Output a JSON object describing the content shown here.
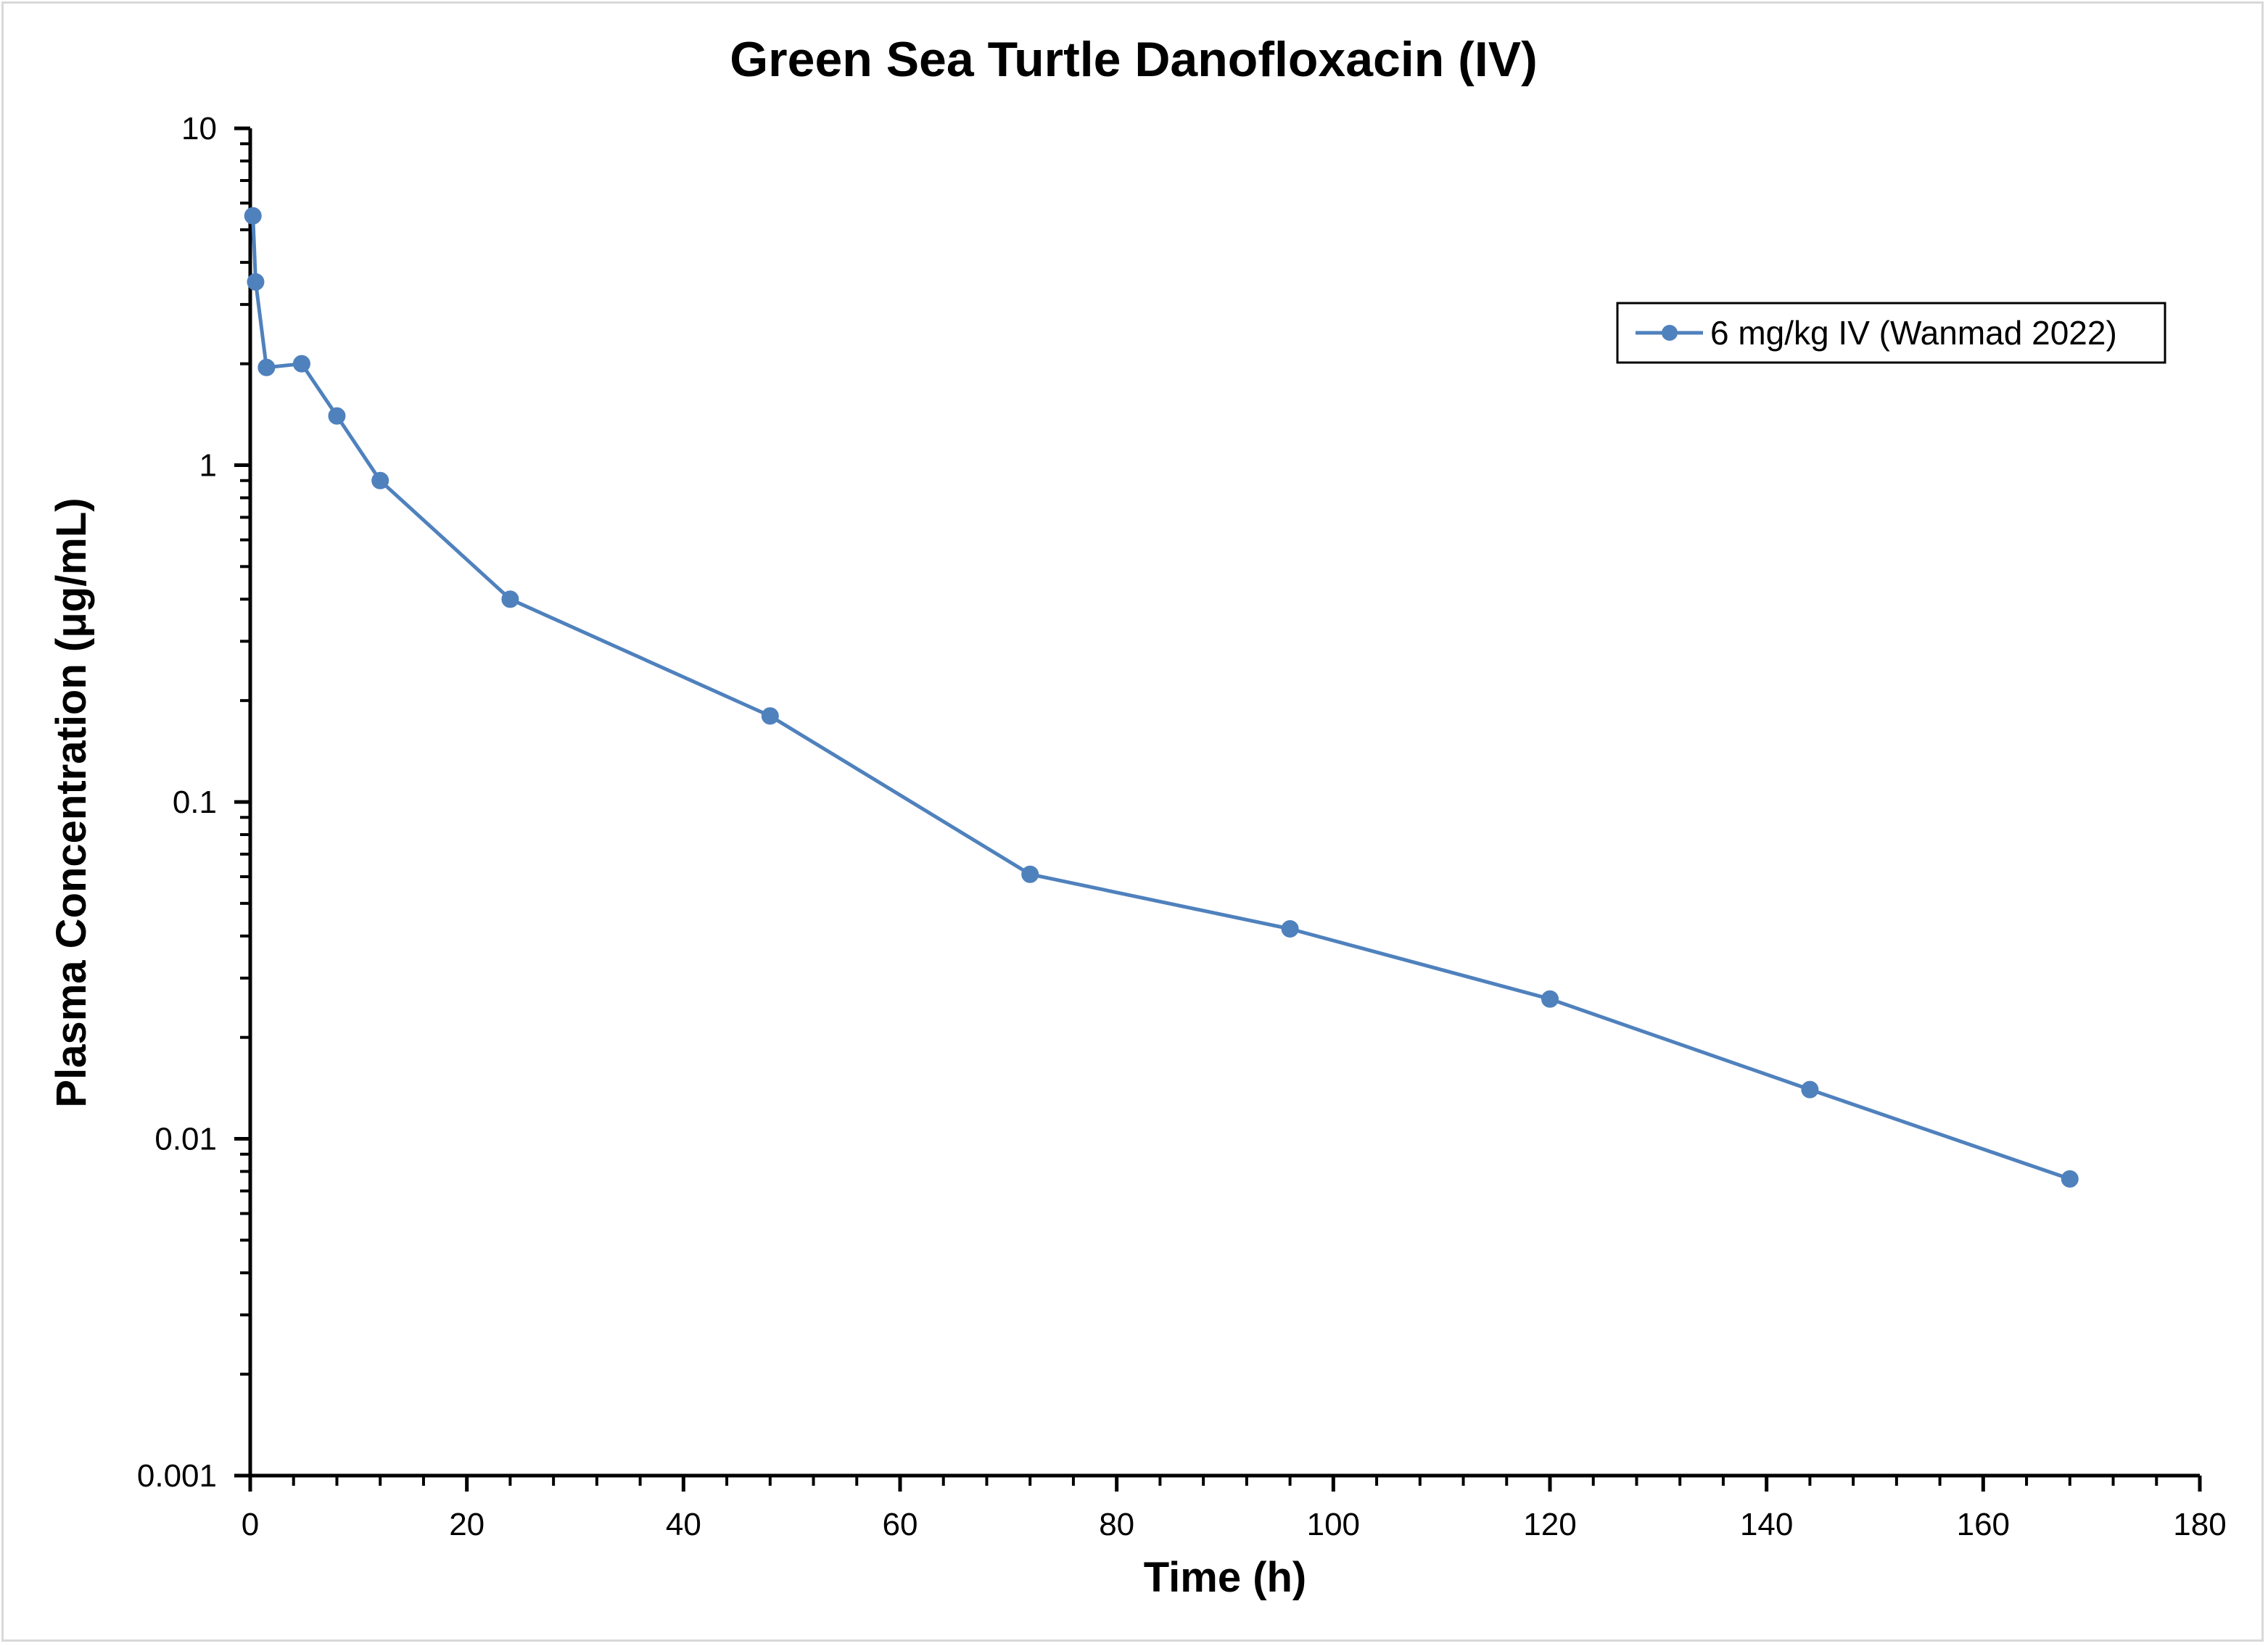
{
  "chart_data": {
    "type": "line",
    "title": "Green Sea Turtle Danofloxacin (IV)",
    "xlabel": "Time (h)",
    "ylabel": "Plasma Concentration (μg/mL)",
    "xlim": [
      0,
      180
    ],
    "ylim": [
      0.001,
      10
    ],
    "yscale": "log",
    "x_ticks": [
      0,
      20,
      40,
      60,
      80,
      100,
      120,
      140,
      160,
      180
    ],
    "x_tick_labels": [
      "0",
      "20",
      "40",
      "60",
      "80",
      "100",
      "120",
      "140",
      "160",
      "180"
    ],
    "y_ticks": [
      0.001,
      0.01,
      0.1,
      1,
      10
    ],
    "y_tick_labels": [
      "0.001",
      "0.01",
      "0.1",
      "1",
      "10"
    ],
    "grid": false,
    "legend_position": "top-right",
    "series": [
      {
        "name": "6 mg/kg IV (Wanmad 2022)",
        "color": "#4f81bd",
        "marker": "circle",
        "x": [
          0.25,
          0.5,
          1.5,
          4.75,
          8,
          12,
          24,
          48,
          72,
          96,
          120,
          144,
          168
        ],
        "y": [
          5.5,
          3.5,
          1.95,
          2.0,
          1.4,
          0.9,
          0.4,
          0.18,
          0.061,
          0.042,
          0.026,
          0.014,
          0.0076
        ]
      }
    ]
  }
}
